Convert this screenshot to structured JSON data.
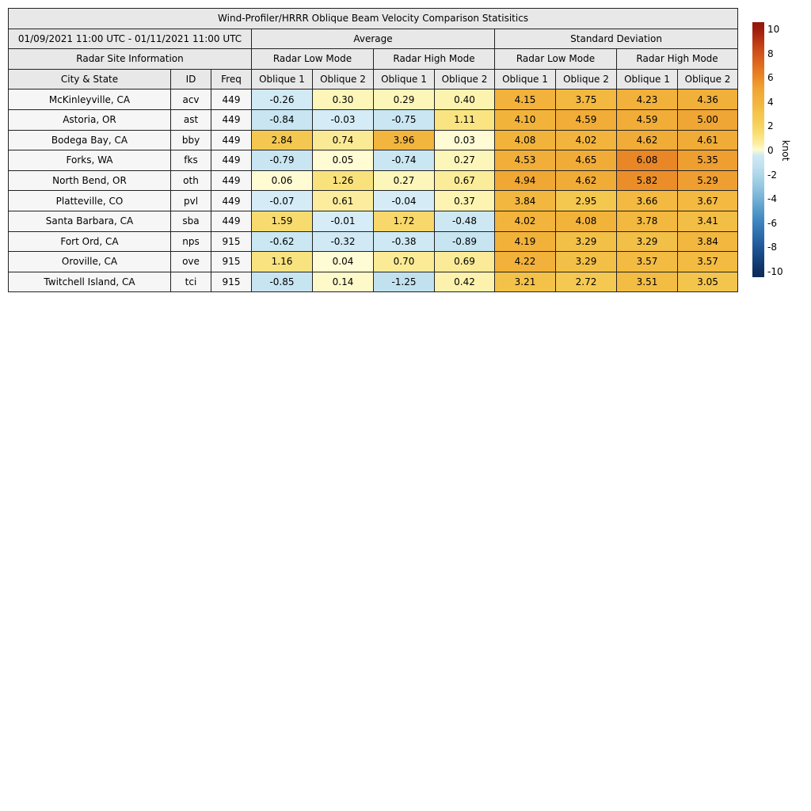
{
  "figure": {
    "title": "Wind-Profiler/HRRR Oblique Beam Velocity Comparison Statisitics",
    "date_range": "01/09/2021 11:00 UTC - 01/11/2021 11:00 UTC"
  },
  "labels": {
    "average": "Average",
    "std_dev": "Standard Deviation",
    "site_info": "Radar Site Information",
    "low_mode": "Radar Low Mode",
    "high_mode": "Radar High Mode",
    "city": "City & State",
    "id": "ID",
    "freq": "Freq",
    "oblique1": "Oblique 1",
    "oblique2": "Oblique 2"
  },
  "colorbar": {
    "unit": "knot",
    "ticks": [
      10,
      8,
      6,
      4,
      2,
      0,
      -2,
      -4,
      -6,
      -8,
      -10
    ],
    "vmin": -10,
    "vmax": 10
  },
  "colors": {
    "header_bg": "#e8e8e8",
    "info_cell_bg": "#f6f6f6",
    "border": "#222222",
    "colormap_anchors": [
      [
        -11,
        "#0a2850"
      ],
      [
        -10,
        "#0e2f60"
      ],
      [
        -9,
        "#16427b"
      ],
      [
        -8,
        "#1f5697"
      ],
      [
        -7,
        "#2d6cab"
      ],
      [
        -6,
        "#3c82bd"
      ],
      [
        -5,
        "#549ac9"
      ],
      [
        -4,
        "#74b0d6"
      ],
      [
        -3,
        "#93c6e0"
      ],
      [
        -2,
        "#aed6e9"
      ],
      [
        -1.5,
        "#bcdeee"
      ],
      [
        -1,
        "#c5e3f0"
      ],
      [
        -0.5,
        "#cde8f3"
      ],
      [
        -0.001,
        "#d6ecf6"
      ],
      [
        0.001,
        "#fffcd8"
      ],
      [
        0.25,
        "#fdf7bd"
      ],
      [
        0.5,
        "#fcf0a5"
      ],
      [
        0.75,
        "#fbea94"
      ],
      [
        1,
        "#fae687"
      ],
      [
        1.5,
        "#f8dc72"
      ],
      [
        2,
        "#f7d462"
      ],
      [
        2.5,
        "#f5cb55"
      ],
      [
        3,
        "#f4c64d"
      ],
      [
        3.5,
        "#f3bc43"
      ],
      [
        4,
        "#f2b43c"
      ],
      [
        4.5,
        "#f1ae38"
      ],
      [
        5,
        "#f0a634"
      ],
      [
        5.5,
        "#ee9a2e"
      ],
      [
        6,
        "#ea8827"
      ],
      [
        6.5,
        "#e57b23"
      ],
      [
        7,
        "#e06d1f"
      ],
      [
        8,
        "#d3531b"
      ],
      [
        9,
        "#bb3714"
      ],
      [
        10,
        "#9d1c0d"
      ],
      [
        11,
        "#8a1206"
      ]
    ]
  },
  "chart_data": {
    "type": "heatmap",
    "title": "Wind-Profiler/HRRR Oblique Beam Velocity Comparison Statisitics",
    "period": "01/09/2021 11:00 UTC - 01/11/2021 11:00 UTC",
    "unit": "knot",
    "color_range": [
      -10,
      10
    ],
    "colorbar_ticks": [
      10,
      8,
      6,
      4,
      2,
      0,
      -2,
      -4,
      -6,
      -8,
      -10
    ],
    "column_groups": [
      {
        "group": "Average",
        "modes": [
          "Radar Low Mode",
          "Radar High Mode"
        ]
      },
      {
        "group": "Standard Deviation",
        "modes": [
          "Radar Low Mode",
          "Radar High Mode"
        ]
      }
    ],
    "value_columns": [
      "Average Radar Low Mode Oblique 1",
      "Average Radar Low Mode Oblique 2",
      "Average Radar High Mode Oblique 1",
      "Average Radar High Mode Oblique 2",
      "Standard Deviation Radar Low Mode Oblique 1",
      "Standard Deviation Radar Low Mode Oblique 2",
      "Standard Deviation Radar High Mode Oblique 1",
      "Standard Deviation Radar High Mode Oblique 2"
    ],
    "rows": [
      {
        "city": "McKinleyville, CA",
        "id": "acv",
        "freq": "449",
        "values": [
          -0.26,
          0.3,
          0.29,
          0.4,
          4.15,
          3.75,
          4.23,
          4.36
        ]
      },
      {
        "city": "Astoria, OR",
        "id": "ast",
        "freq": "449",
        "values": [
          -0.84,
          -0.03,
          -0.75,
          1.11,
          4.1,
          4.59,
          4.59,
          5.0
        ]
      },
      {
        "city": "Bodega Bay, CA",
        "id": "bby",
        "freq": "449",
        "values": [
          2.84,
          0.74,
          3.96,
          0.03,
          4.08,
          4.02,
          4.62,
          4.61
        ]
      },
      {
        "city": "Forks, WA",
        "id": "fks",
        "freq": "449",
        "values": [
          -0.79,
          0.05,
          -0.74,
          0.27,
          4.53,
          4.65,
          6.08,
          5.35
        ]
      },
      {
        "city": "North Bend, OR",
        "id": "oth",
        "freq": "449",
        "values": [
          0.06,
          1.26,
          0.27,
          0.67,
          4.94,
          4.62,
          5.82,
          5.29
        ]
      },
      {
        "city": "Platteville, CO",
        "id": "pvl",
        "freq": "449",
        "values": [
          -0.07,
          0.61,
          -0.04,
          0.37,
          3.84,
          2.95,
          3.66,
          3.67
        ]
      },
      {
        "city": "Santa Barbara, CA",
        "id": "sba",
        "freq": "449",
        "values": [
          1.59,
          -0.01,
          1.72,
          -0.48,
          4.02,
          4.08,
          3.78,
          3.41
        ]
      },
      {
        "city": "Fort Ord, CA",
        "id": "nps",
        "freq": "915",
        "values": [
          -0.62,
          -0.32,
          -0.38,
          -0.89,
          4.19,
          3.29,
          3.29,
          3.84
        ]
      },
      {
        "city": "Oroville, CA",
        "id": "ove",
        "freq": "915",
        "values": [
          1.16,
          0.04,
          0.7,
          0.69,
          4.22,
          3.29,
          3.57,
          3.57
        ]
      },
      {
        "city": "Twitchell Island, CA",
        "id": "tci",
        "freq": "915",
        "values": [
          -0.85,
          0.14,
          -1.25,
          0.42,
          3.21,
          2.72,
          3.51,
          3.05
        ]
      }
    ]
  }
}
